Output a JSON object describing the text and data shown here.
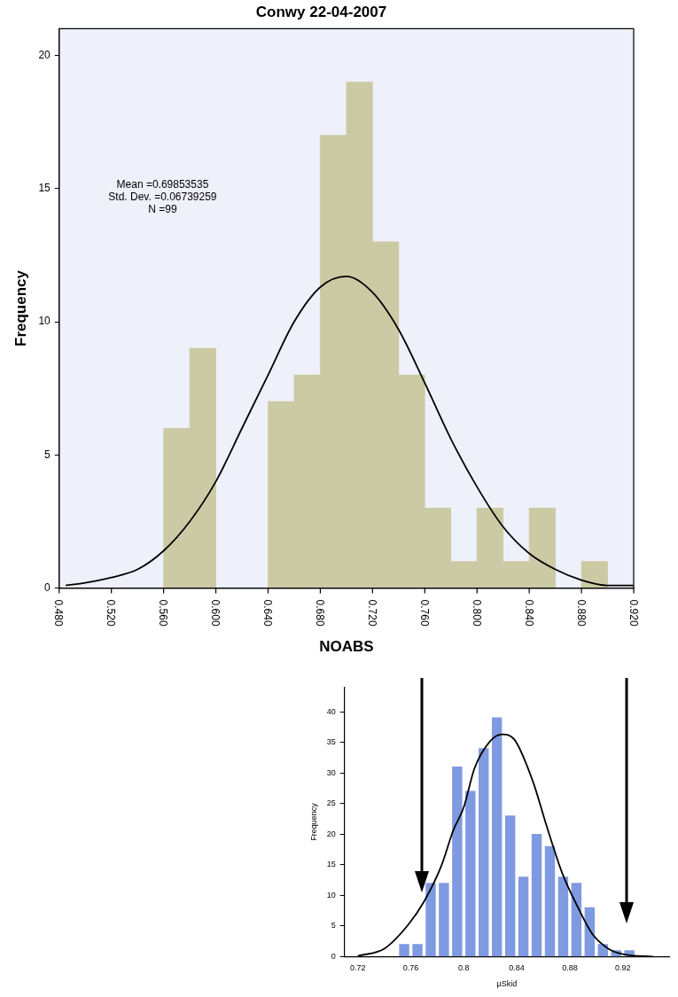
{
  "chart_data": [
    {
      "type": "histogram",
      "title": "Conwy 22-04-2007",
      "xlabel": "NOABS",
      "ylabel": "Frequency",
      "bins": [
        0.56,
        0.58,
        0.6,
        0.64,
        0.66,
        0.68,
        0.7,
        0.72,
        0.74,
        0.76,
        0.78,
        0.8,
        0.82,
        0.84,
        0.86,
        0.88,
        0.9
      ],
      "values": [
        6,
        9,
        0,
        7,
        8,
        17,
        19,
        13,
        8,
        3,
        1,
        3,
        1,
        3,
        0,
        1
      ],
      "color": "#cbcaa4",
      "series": [
        {
          "type": "line",
          "color": "#000000",
          "x": [
            0.485,
            0.5,
            0.52,
            0.54,
            0.56,
            0.58,
            0.6,
            0.62,
            0.64,
            0.66,
            0.68,
            0.7,
            0.72,
            0.74,
            0.76,
            0.78,
            0.8,
            0.82,
            0.84,
            0.86,
            0.88,
            0.9,
            0.92
          ],
          "values": [
            0.1,
            0.2,
            0.4,
            0.7,
            1.4,
            2.5,
            4.0,
            6.0,
            8.0,
            10.0,
            11.3,
            11.7,
            11.1,
            9.7,
            7.7,
            5.6,
            3.8,
            2.3,
            1.3,
            0.7,
            0.3,
            0.1,
            0.1
          ]
        }
      ],
      "xlim": [
        0.48,
        0.92
      ],
      "xticks": [
        {
          "value": 0.48,
          "label": "0.480"
        },
        {
          "value": 0.52,
          "label": "0.520"
        },
        {
          "value": 0.56,
          "label": "0.560"
        },
        {
          "value": 0.6,
          "label": "0.600"
        },
        {
          "value": 0.64,
          "label": "0.640"
        },
        {
          "value": 0.68,
          "label": "0.680"
        },
        {
          "value": 0.72,
          "label": "0.720"
        },
        {
          "value": 0.76,
          "label": "0.760"
        },
        {
          "value": 0.8,
          "label": "0.800"
        },
        {
          "value": 0.84,
          "label": "0.840"
        },
        {
          "value": 0.88,
          "label": "0.880"
        },
        {
          "value": 0.92,
          "label": "0.920"
        }
      ],
      "ylim": [
        0,
        21
      ],
      "yticks": [
        0,
        5,
        10,
        15,
        20
      ],
      "annotations": [
        "Mean =0.69853535",
        "Std. Dev. =0.06739259",
        "N =99"
      ],
      "grid": false,
      "legend": false,
      "marker": "none"
    },
    {
      "type": "histogram",
      "xlabel": "µSkid",
      "ylabel": "Frequency",
      "bins": [
        0.75,
        0.76,
        0.77,
        0.78,
        0.79,
        0.8,
        0.81,
        0.82,
        0.83,
        0.84,
        0.85,
        0.86,
        0.87,
        0.88,
        0.89,
        0.9,
        0.91,
        0.92,
        0.93
      ],
      "values": [
        2,
        2,
        12,
        12,
        31,
        27,
        34,
        39,
        23,
        13,
        20,
        18,
        13,
        12,
        8,
        2,
        1,
        1
      ],
      "color": "#7f9ae0",
      "series": [
        {
          "type": "line",
          "color": "#000000",
          "x": [
            0.72,
            0.74,
            0.758,
            0.77,
            0.783,
            0.792,
            0.8,
            0.808,
            0.82,
            0.829,
            0.838,
            0.852,
            0.863,
            0.874,
            0.886,
            0.897,
            0.909,
            0.92,
            0.943
          ],
          "values": [
            0.1,
            1.3,
            5.2,
            9,
            14.8,
            20.6,
            24.4,
            30.7,
            35.2,
            36.3,
            35.5,
            28.7,
            21,
            13.8,
            8.1,
            3.7,
            1.3,
            0.4,
            0
          ]
        }
      ],
      "xlim": [
        0.71,
        0.955
      ],
      "xticks": [
        0.72,
        0.76,
        0.8,
        0.84,
        0.88,
        0.92
      ],
      "ylim": [
        0,
        44
      ],
      "yticks": [
        0,
        5,
        10,
        15,
        20,
        25,
        30,
        35,
        40
      ],
      "grid": false,
      "legend": false,
      "marker": "none"
    }
  ]
}
